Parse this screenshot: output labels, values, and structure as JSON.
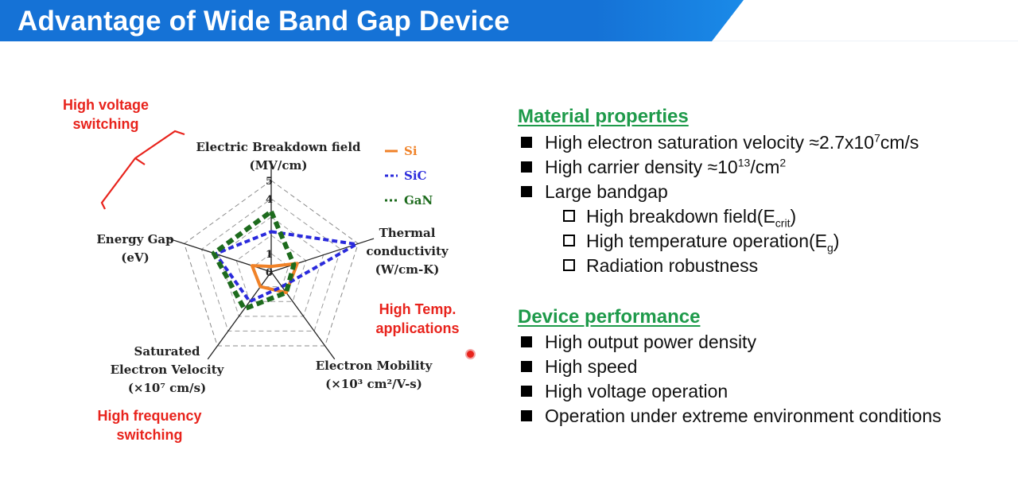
{
  "slide": {
    "title": "Advantage of Wide Band Gap Device",
    "header_color": "#1572d6"
  },
  "annotations": {
    "high_voltage": [
      "High voltage",
      "switching"
    ],
    "high_temp": [
      "High Temp.",
      "applications"
    ],
    "high_freq": [
      "High frequency",
      "switching"
    ],
    "color": "#e8231c"
  },
  "chart_data": {
    "type": "radar",
    "axes": [
      {
        "label": [
          "Electric Breakdown field",
          "(MV/cm)"
        ]
      },
      {
        "label": [
          "Thermal",
          "conductivity",
          "(W/cm-K)"
        ]
      },
      {
        "label": [
          "Electron Mobility",
          "(×10³ cm²/V-s)"
        ]
      },
      {
        "label": [
          "Saturated",
          "Electron Velocity",
          "(×10⁷ cm/s)"
        ]
      },
      {
        "label": [
          "Energy Gap",
          "(eV)"
        ]
      }
    ],
    "rlim": [
      0,
      5
    ],
    "ticks": [
      "0",
      "1",
      "4",
      "5"
    ],
    "series": [
      {
        "name": "Si",
        "color": "#f08228",
        "values": [
          0.3,
          1.5,
          1.4,
          1.0,
          1.1
        ]
      },
      {
        "name": "SiC",
        "color": "#2a2adc",
        "values": [
          2.2,
          4.9,
          1.0,
          2.0,
          3.2
        ]
      },
      {
        "name": "GaN",
        "color": "#1d6b1d",
        "values": [
          3.3,
          1.3,
          1.4,
          2.5,
          3.3
        ]
      }
    ],
    "legend": "top-right"
  },
  "material": {
    "heading": "Material properties",
    "items": [
      "High electron saturation velocity ≈2.7x10⁷cm/s",
      "High carrier density ≈10¹³/cm²",
      "Large bandgap"
    ],
    "subitems": [
      "High breakdown field(Eₓ)",
      "High temperature operation(E₉)",
      "Radiation robustness"
    ]
  },
  "device": {
    "heading": "Device performance",
    "items": [
      "High output power density",
      "High speed",
      "High voltage operation",
      "Operation under extreme environment conditions"
    ]
  }
}
